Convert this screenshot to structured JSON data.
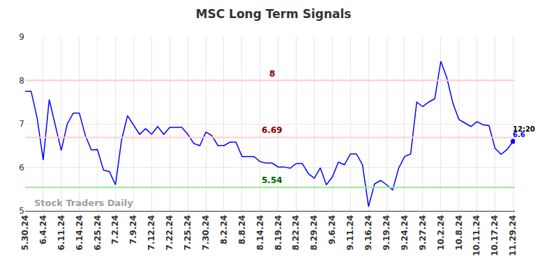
{
  "chart_data": {
    "type": "line",
    "title": "MSC Long Term Signals",
    "categories": [
      "5.30.24",
      null,
      null,
      "6.4.24",
      null,
      null,
      "6.11.24",
      null,
      null,
      "6.14.24",
      null,
      null,
      "6.25.24",
      null,
      null,
      "7.2.24",
      null,
      null,
      "7.9.24",
      null,
      null,
      "7.12.24",
      null,
      null,
      "7.22.24",
      null,
      null,
      "7.25.24",
      null,
      null,
      "7.30.24",
      null,
      null,
      "8.2.24",
      null,
      null,
      "8.8.24",
      null,
      null,
      "8.14.24",
      null,
      null,
      "8.19.24",
      null,
      null,
      "8.22.24",
      null,
      null,
      "8.29.24",
      null,
      null,
      "9.6.24",
      null,
      null,
      "9.11.24",
      null,
      null,
      "9.16.24",
      null,
      null,
      "9.19.24",
      null,
      null,
      "9.24.24",
      null,
      null,
      "9.27.24",
      null,
      null,
      "10.2.24",
      null,
      null,
      "10.8.24",
      null,
      null,
      "10.11.24",
      null,
      null,
      "10.17.24",
      null,
      null,
      "11.29.24"
    ],
    "values": [
      7.75,
      7.75,
      7.13,
      6.17,
      7.56,
      6.97,
      6.39,
      7.0,
      7.25,
      7.25,
      6.73,
      6.4,
      6.41,
      5.94,
      5.9,
      5.6,
      6.62,
      7.19,
      6.98,
      6.76,
      6.89,
      6.76,
      6.94,
      6.76,
      6.92,
      6.92,
      6.92,
      6.76,
      6.55,
      6.5,
      6.81,
      6.73,
      6.5,
      6.5,
      6.58,
      6.58,
      6.25,
      6.25,
      6.25,
      6.13,
      6.1,
      6.1,
      6.01,
      6.01,
      5.98,
      6.09,
      6.09,
      5.86,
      5.75,
      5.99,
      5.6,
      5.78,
      6.12,
      6.06,
      6.31,
      6.31,
      6.06,
      5.1,
      5.62,
      5.7,
      5.6,
      5.48,
      5.98,
      6.25,
      6.31,
      7.5,
      7.4,
      7.5,
      7.58,
      8.44,
      8.06,
      7.48,
      7.1,
      7.02,
      6.94,
      7.05,
      6.98,
      6.96,
      6.44,
      6.3,
      6.41,
      6.6
    ],
    "color": "#0000ff",
    "ylim": [
      5,
      9
    ],
    "yticks": [
      5,
      6,
      7,
      8,
      9
    ],
    "grid": true,
    "reference_lines": [
      {
        "value": 8,
        "label": "8",
        "color": "#ffcccc",
        "label_color": "#8b0000"
      },
      {
        "value": 6.69,
        "label": "6.69",
        "color": "#ffcccc",
        "label_color": "#8b0000"
      },
      {
        "value": 5.54,
        "label": "5.54",
        "color": "#99e699",
        "label_color": "#006400"
      }
    ],
    "last_point": {
      "time_label": "12:20",
      "value_label": "6.6"
    },
    "watermark": "Stock Traders Daily"
  }
}
